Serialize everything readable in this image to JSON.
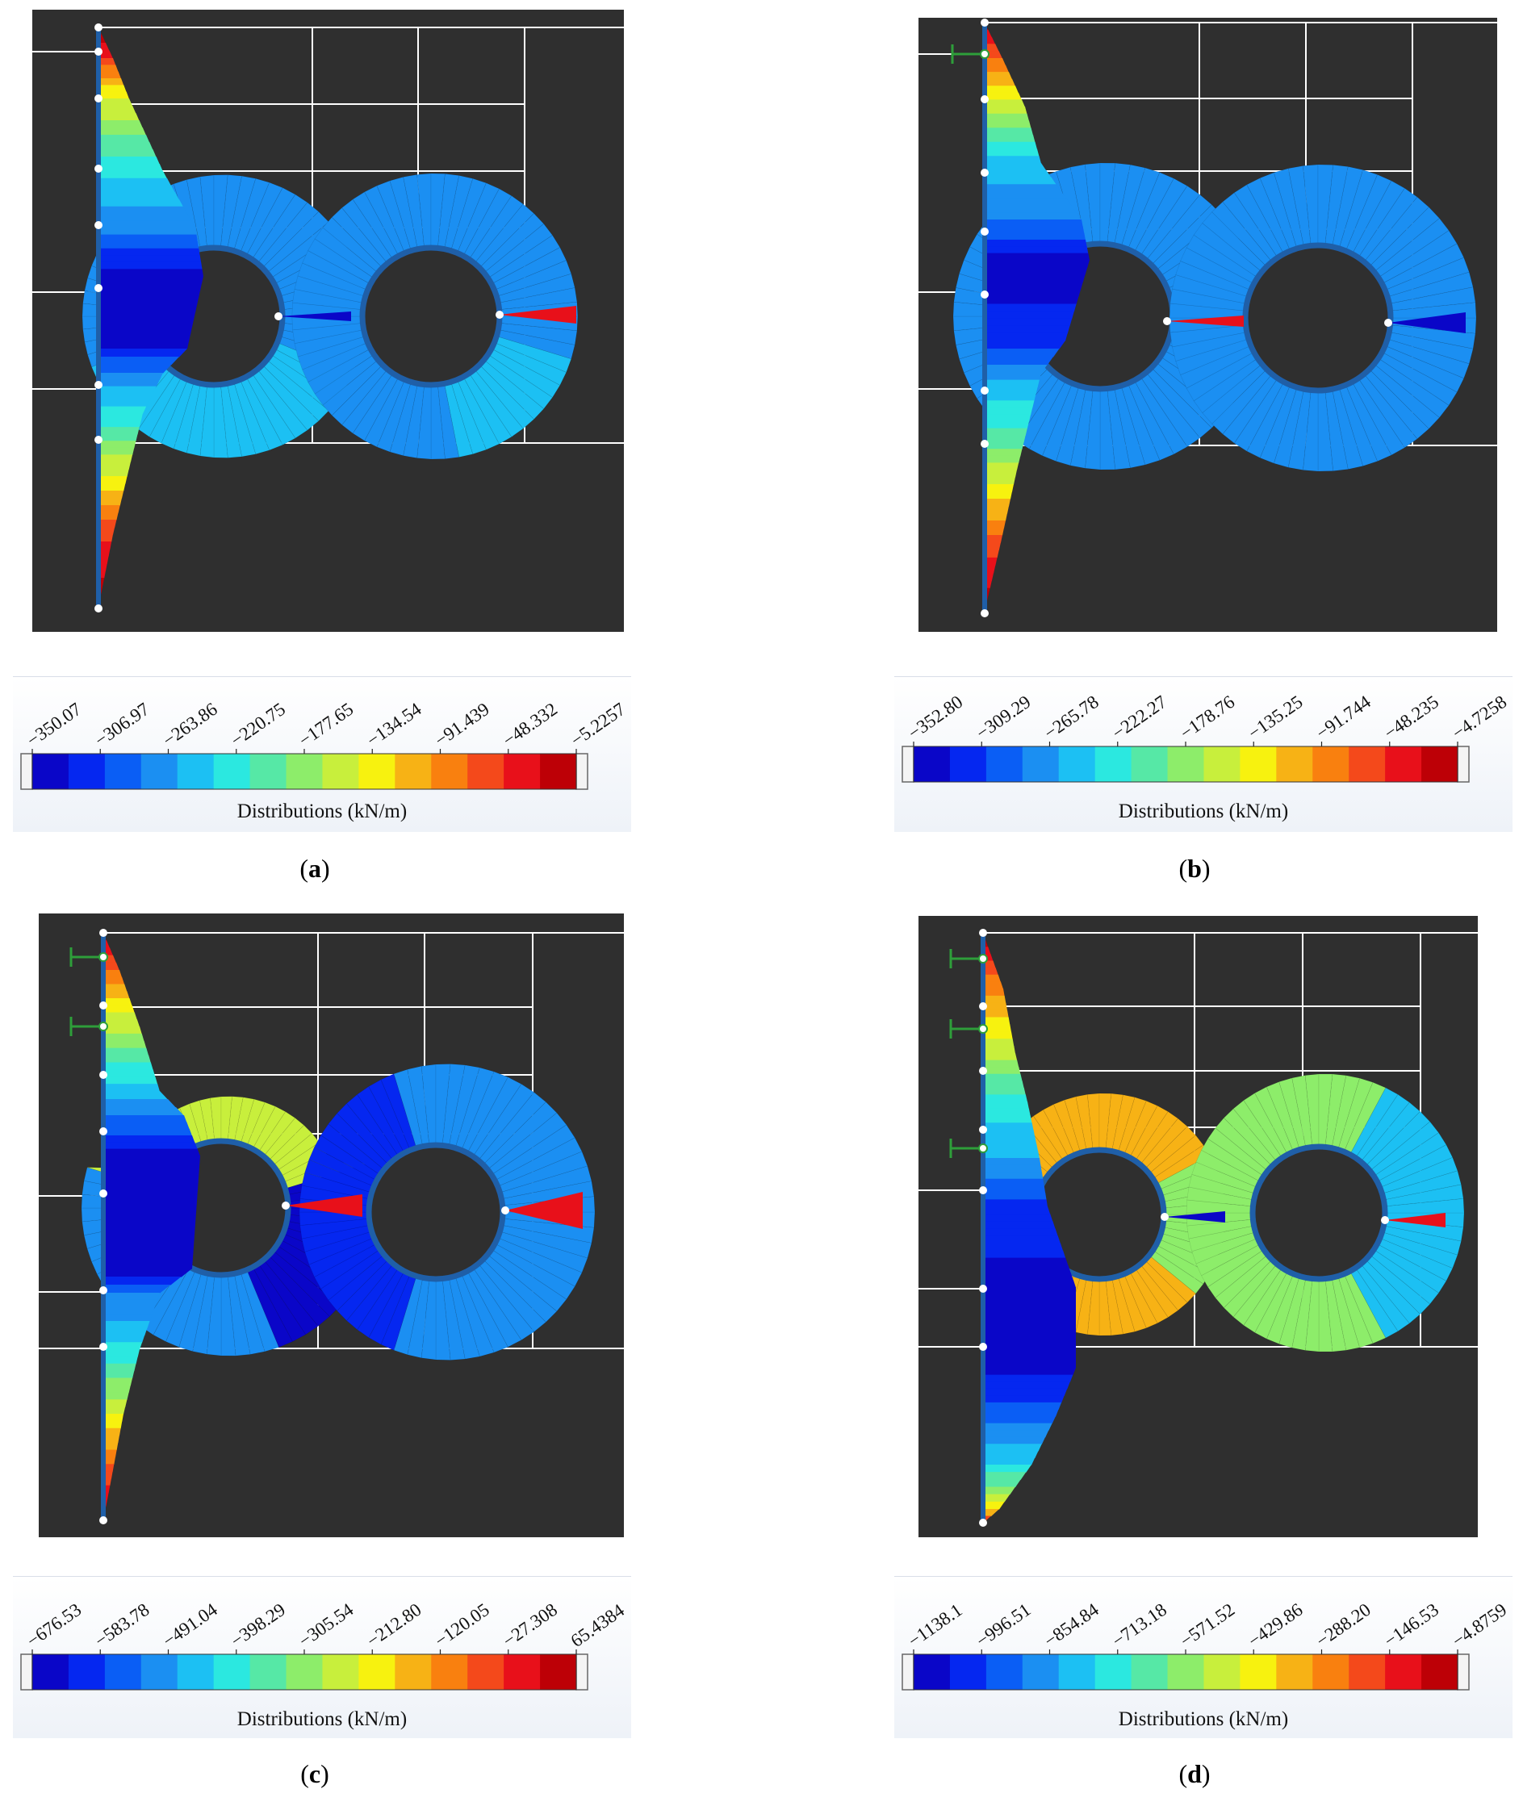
{
  "panels": [
    {
      "id": "a",
      "caption_letter": "a",
      "legend_title": "Distributions (kN/m)",
      "legend_values": [
        "−350.07",
        "−306.97",
        "−263.86",
        "−220.75",
        "−177.65",
        "−134.54",
        "−91.439",
        "−48.332",
        "−5.2257"
      ],
      "supports": 0
    },
    {
      "id": "b",
      "caption_letter": "b",
      "legend_title": "Distributions (kN/m)",
      "legend_values": [
        "−352.80",
        "−309.29",
        "−265.78",
        "−222.27",
        "−178.76",
        "−135.25",
        "−91.744",
        "−48.235",
        "−4.7258"
      ],
      "supports": 1
    },
    {
      "id": "c",
      "caption_letter": "c",
      "legend_title": "Distributions (kN/m)",
      "legend_values": [
        "−676.53",
        "−583.78",
        "−491.04",
        "−398.29",
        "−305.54",
        "−212.80",
        "−120.05",
        "−27.308",
        "65.4384"
      ],
      "supports": 2
    },
    {
      "id": "d",
      "caption_letter": "d",
      "legend_title": "Distributions (kN/m)",
      "legend_values": [
        "−1138.1",
        "−996.51",
        "−854.84",
        "−713.18",
        "−571.52",
        "−429.86",
        "−288.20",
        "−146.53",
        "−4.8759"
      ],
      "supports": 3
    }
  ],
  "colors": {
    "viewport_bg": "#2f2f2f",
    "wall": "#1f5fa8",
    "support": "#2e9e3a",
    "colormap": [
      "#0a06c8",
      "#0527f0",
      "#0a5ef5",
      "#1b8ff2",
      "#1cc0f3",
      "#2be8e0",
      "#56e8a6",
      "#8ded6a",
      "#c8ef3c",
      "#f7f20f",
      "#f7b215",
      "#f9800f",
      "#f4491b",
      "#e8101a",
      "#bd0006"
    ]
  }
}
